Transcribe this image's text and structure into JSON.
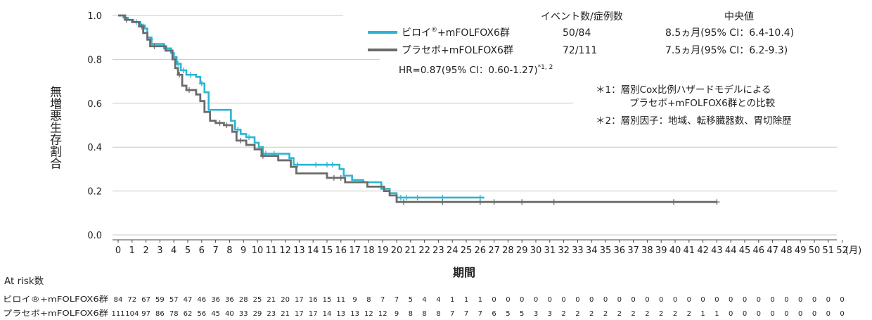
{
  "chart_data": {
    "type": "line",
    "subtype": "kaplan-meier",
    "title": "",
    "xlabel": "期間",
    "x_unit": "(月)",
    "ylabel": "無増悪生存割合",
    "xlim": [
      0,
      52
    ],
    "ylim": [
      0,
      1.0
    ],
    "x_ticks": [
      0,
      1,
      2,
      3,
      4,
      5,
      6,
      7,
      8,
      9,
      10,
      11,
      12,
      13,
      14,
      15,
      16,
      17,
      18,
      19,
      20,
      21,
      22,
      23,
      24,
      25,
      26,
      27,
      28,
      29,
      30,
      31,
      32,
      33,
      34,
      35,
      36,
      37,
      38,
      39,
      40,
      41,
      42,
      43,
      44,
      45,
      46,
      47,
      48,
      49,
      50,
      51,
      52
    ],
    "y_ticks": [
      "0.0",
      "0.2",
      "0.4",
      "0.6",
      "0.8",
      "1.0"
    ],
    "grid": "horizontal",
    "legend_header": {
      "events": "イベント数/症例数",
      "median": "中央値"
    },
    "series": [
      {
        "name": "ビロイ®+mFOLFOX6群",
        "name_base": "ビロイ",
        "name_sup": "®",
        "name_rest": "+mFOLFOX6群",
        "color": "#29b6d2",
        "events": "50/84",
        "median": "8.5ヵ月(95% CI：6.4-10.4)",
        "points": [
          [
            0,
            1.0
          ],
          [
            0.4,
            0.99
          ],
          [
            0.7,
            0.98
          ],
          [
            1.1,
            0.97
          ],
          [
            1.6,
            0.955
          ],
          [
            1.9,
            0.94
          ],
          [
            2.1,
            0.9
          ],
          [
            2.4,
            0.87
          ],
          [
            3.3,
            0.85
          ],
          [
            3.8,
            0.83
          ],
          [
            4.0,
            0.81
          ],
          [
            4.2,
            0.78
          ],
          [
            4.5,
            0.75
          ],
          [
            4.9,
            0.73
          ],
          [
            5.6,
            0.72
          ],
          [
            5.9,
            0.69
          ],
          [
            6.2,
            0.65
          ],
          [
            6.5,
            0.57
          ],
          [
            8.1,
            0.52
          ],
          [
            8.4,
            0.48
          ],
          [
            8.8,
            0.46
          ],
          [
            9.2,
            0.445
          ],
          [
            9.8,
            0.42
          ],
          [
            10.1,
            0.4
          ],
          [
            10.4,
            0.37
          ],
          [
            12.3,
            0.35
          ],
          [
            12.6,
            0.32
          ],
          [
            15.9,
            0.3
          ],
          [
            16.2,
            0.27
          ],
          [
            16.8,
            0.25
          ],
          [
            17.6,
            0.24
          ],
          [
            18.9,
            0.21
          ],
          [
            19.5,
            0.19
          ],
          [
            20.0,
            0.17
          ],
          [
            26.3,
            0.17
          ]
        ],
        "censor": [
          [
            0.5,
            0.99
          ],
          [
            1.3,
            0.97
          ],
          [
            1.8,
            0.95
          ],
          [
            2.3,
            0.89
          ],
          [
            3.5,
            0.85
          ],
          [
            4.3,
            0.78
          ],
          [
            4.7,
            0.75
          ],
          [
            5.2,
            0.73
          ],
          [
            6.0,
            0.69
          ],
          [
            8.6,
            0.48
          ],
          [
            9.4,
            0.445
          ],
          [
            10.6,
            0.37
          ],
          [
            11.2,
            0.37
          ],
          [
            12.9,
            0.32
          ],
          [
            14.2,
            0.32
          ],
          [
            15.0,
            0.32
          ],
          [
            15.4,
            0.32
          ],
          [
            20.3,
            0.17
          ],
          [
            20.7,
            0.17
          ],
          [
            21.5,
            0.17
          ],
          [
            23.3,
            0.17
          ],
          [
            26.0,
            0.17
          ]
        ]
      },
      {
        "name": "プラセボ+mFOLFOX6群",
        "color": "#6b6b6b",
        "events": "72/111",
        "median": "7.5ヵ月(95% CI：6.2-9.3)",
        "points": [
          [
            0,
            1.0
          ],
          [
            0.5,
            0.98
          ],
          [
            1.0,
            0.97
          ],
          [
            1.5,
            0.95
          ],
          [
            1.8,
            0.92
          ],
          [
            2.1,
            0.89
          ],
          [
            2.3,
            0.86
          ],
          [
            3.4,
            0.84
          ],
          [
            3.9,
            0.8
          ],
          [
            4.1,
            0.76
          ],
          [
            4.3,
            0.73
          ],
          [
            4.6,
            0.68
          ],
          [
            4.9,
            0.66
          ],
          [
            5.6,
            0.64
          ],
          [
            5.9,
            0.61
          ],
          [
            6.2,
            0.56
          ],
          [
            6.6,
            0.52
          ],
          [
            7.0,
            0.51
          ],
          [
            7.6,
            0.5
          ],
          [
            8.2,
            0.47
          ],
          [
            8.5,
            0.43
          ],
          [
            9.2,
            0.41
          ],
          [
            9.8,
            0.39
          ],
          [
            10.3,
            0.36
          ],
          [
            11.5,
            0.34
          ],
          [
            12.4,
            0.31
          ],
          [
            12.8,
            0.28
          ],
          [
            15.0,
            0.26
          ],
          [
            16.3,
            0.24
          ],
          [
            17.9,
            0.22
          ],
          [
            19.1,
            0.2
          ],
          [
            19.5,
            0.18
          ],
          [
            20.0,
            0.15
          ],
          [
            43.0,
            0.15
          ]
        ],
        "censor": [
          [
            0.6,
            0.98
          ],
          [
            1.7,
            0.95
          ],
          [
            2.6,
            0.86
          ],
          [
            4.4,
            0.73
          ],
          [
            5.1,
            0.66
          ],
          [
            7.3,
            0.51
          ],
          [
            7.8,
            0.5
          ],
          [
            8.8,
            0.43
          ],
          [
            10.4,
            0.36
          ],
          [
            15.5,
            0.26
          ],
          [
            16.0,
            0.26
          ],
          [
            20.5,
            0.15
          ],
          [
            23.3,
            0.15
          ],
          [
            26.0,
            0.15
          ],
          [
            27.0,
            0.15
          ],
          [
            29.0,
            0.15
          ],
          [
            31.3,
            0.15
          ],
          [
            39.9,
            0.15
          ],
          [
            43.0,
            0.15
          ]
        ]
      }
    ],
    "annotations": {
      "hr_main": "HR=0.87(95% CI：0.60-1.27)",
      "hr_sup": "*1, 2",
      "note1_line1": "＊1：層別Cox比例ハザードモデルによる",
      "note1_line2": "プラセボ+mFOLFOX6群との比較",
      "note2": "＊2：層別因子：地域、転移臓器数、胃切除歴"
    },
    "at_risk": {
      "title": "At risk数",
      "rows": [
        {
          "label": "ビロイ®+mFOLFOX6群",
          "values": [
            84,
            72,
            67,
            59,
            57,
            47,
            46,
            36,
            36,
            28,
            25,
            21,
            20,
            17,
            16,
            15,
            11,
            9,
            8,
            7,
            7,
            5,
            4,
            4,
            1,
            1,
            1,
            0,
            0,
            0,
            0,
            0,
            0,
            0,
            0,
            0,
            0,
            0,
            0,
            0,
            0,
            0,
            0,
            0,
            0,
            0,
            0,
            0,
            0,
            0,
            0,
            0,
            0
          ]
        },
        {
          "label": "プラセボ+mFOLFOX6群",
          "values": [
            111,
            104,
            97,
            86,
            78,
            62,
            56,
            45,
            40,
            33,
            29,
            23,
            21,
            17,
            17,
            14,
            13,
            13,
            12,
            12,
            9,
            8,
            8,
            8,
            7,
            7,
            7,
            6,
            5,
            5,
            3,
            3,
            2,
            2,
            2,
            2,
            2,
            2,
            2,
            2,
            2,
            2,
            1,
            1,
            0,
            0,
            0,
            0,
            0,
            0,
            0,
            0,
            0
          ]
        }
      ]
    }
  }
}
